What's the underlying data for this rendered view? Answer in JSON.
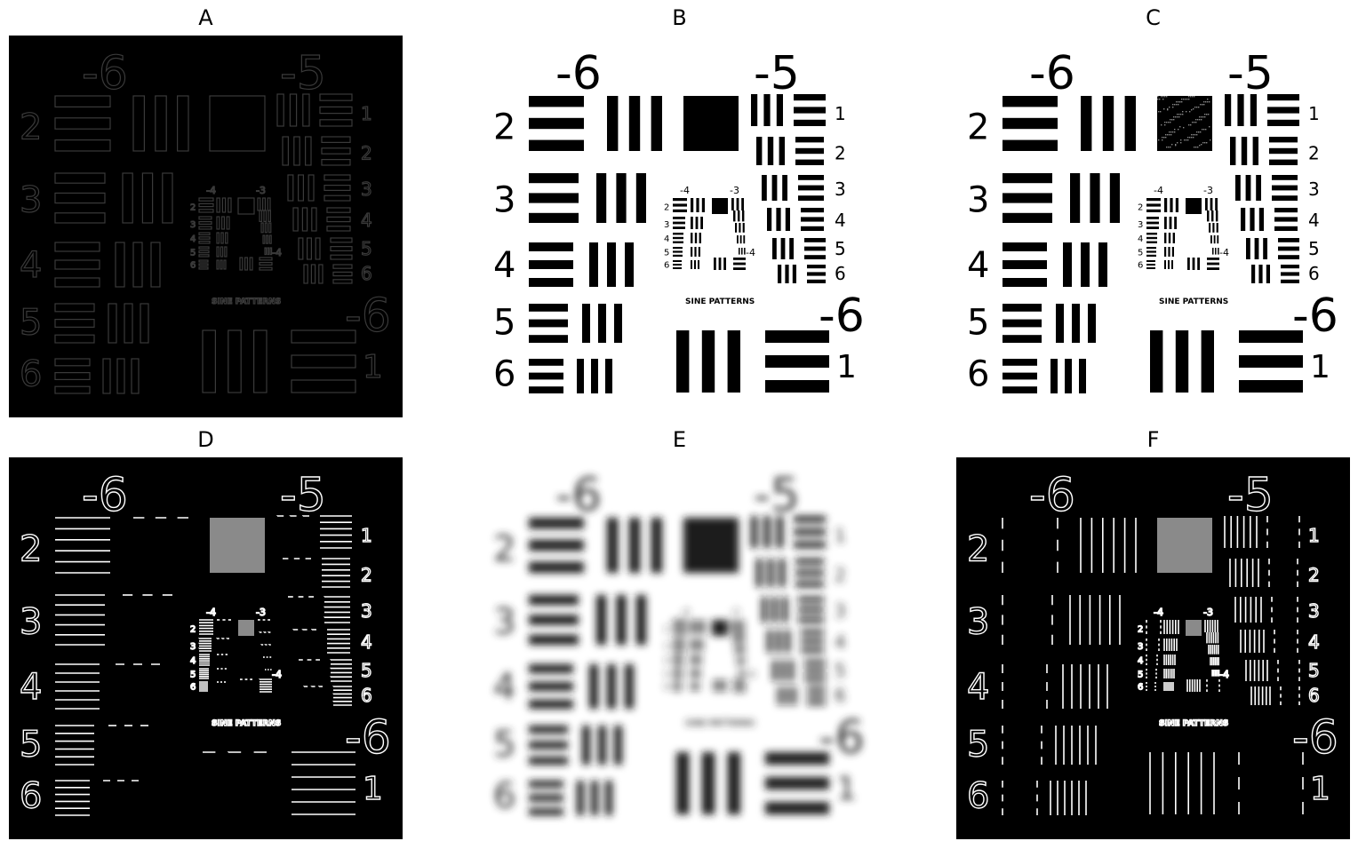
{
  "panels": [
    {
      "label": "A",
      "style": "dark-edge"
    },
    {
      "label": "B",
      "style": "sharp"
    },
    {
      "label": "C",
      "style": "noisy"
    },
    {
      "label": "D",
      "style": "horizontal-edges"
    },
    {
      "label": "E",
      "style": "blurred"
    },
    {
      "label": "F",
      "style": "vertical-edges"
    }
  ],
  "target": {
    "group_left": "-6",
    "group_right": "-5",
    "group_bottom": "-6",
    "inner_left": "-4",
    "inner_right": "-3",
    "inner_bottom": "-4",
    "element_numbers_left": [
      "2",
      "3",
      "4",
      "5",
      "6"
    ],
    "element_numbers_right": [
      "1",
      "2",
      "3",
      "4",
      "5",
      "6"
    ],
    "bottom_right_element": "1",
    "inner_numbers": [
      "2",
      "3",
      "4",
      "5",
      "6"
    ],
    "logo_text": "SINE PATTERNS"
  },
  "colors": {
    "black": "#000000",
    "white": "#ffffff"
  }
}
